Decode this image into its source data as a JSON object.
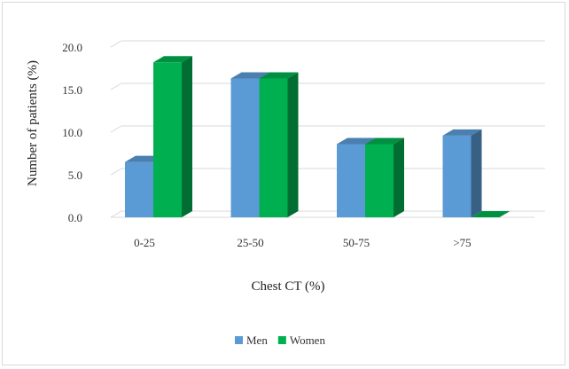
{
  "chart_data": {
    "type": "bar",
    "title": "",
    "xlabel": "Chest CT  (%)",
    "ylabel": "Number of patients (%)",
    "categories": [
      "0-25",
      "25-50",
      "50-75",
      ">75"
    ],
    "ylim": [
      0,
      20
    ],
    "yticks": [
      "0.0",
      "5.0",
      "10.0",
      "15.0",
      "20.0"
    ],
    "grid": true,
    "legend_position": "bottom",
    "series": [
      {
        "name": "Men",
        "values": [
          6.5,
          16.3,
          8.6,
          9.6
        ],
        "color": "#5b9bd5"
      },
      {
        "name": "Women",
        "values": [
          18.2,
          16.3,
          8.6,
          0.0
        ],
        "color": "#00b050"
      }
    ]
  }
}
